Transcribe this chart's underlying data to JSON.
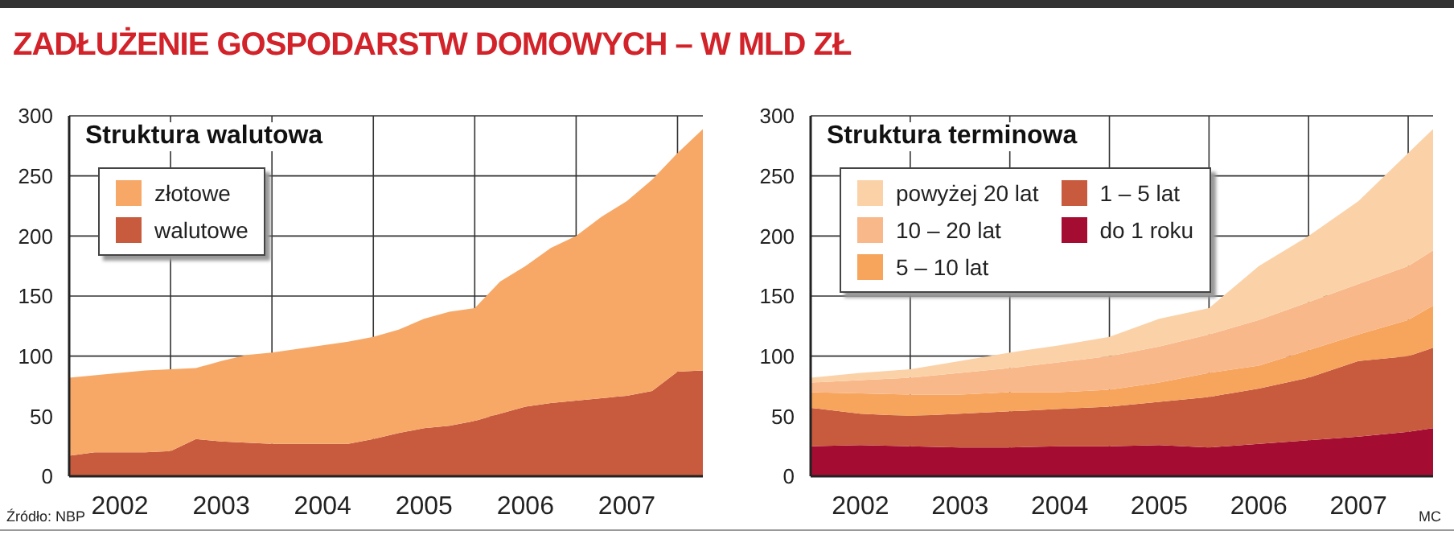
{
  "chart_data": [
    {
      "type": "area",
      "title": "ZADŁUŻENIE GOSPODARSTW DOMOWYCH – W MLD ZŁ",
      "subtitle": "Struktura walutowa",
      "stacked": true,
      "legend": "top left",
      "grid": true,
      "x": [
        2002,
        2002.25,
        2002.5,
        2002.75,
        2003,
        2003.25,
        2003.5,
        2003.75,
        2004,
        2004.25,
        2004.5,
        2004.75,
        2005,
        2005.25,
        2005.5,
        2005.75,
        2006,
        2006.25,
        2006.5,
        2006.75,
        2007,
        2007.25,
        2007.5,
        2007.75,
        2008,
        2008.25
      ],
      "series": [
        {
          "name": "walutowe",
          "color": "#c85a3e",
          "values": [
            17,
            20,
            20,
            20,
            21,
            31,
            29,
            28,
            27,
            27,
            27,
            27,
            31,
            36,
            40,
            42,
            46,
            52,
            58,
            61,
            63,
            65,
            67,
            71,
            87,
            88
          ]
        },
        {
          "name": "złotowe",
          "color": "#f7a866",
          "values": [
            65,
            64,
            66,
            68,
            68,
            59,
            67,
            73,
            76,
            79,
            82,
            85,
            85,
            86,
            91,
            95,
            94,
            110,
            117,
            129,
            137,
            151,
            162,
            176,
            182,
            201
          ]
        }
      ],
      "xlim": [
        2002,
        2008.25
      ],
      "xticks": [
        {
          "value": 2002.5,
          "label": "2002"
        },
        {
          "value": 2003,
          "label": null
        },
        {
          "value": 2003.5,
          "label": "2003"
        },
        {
          "value": 2004,
          "label": null
        },
        {
          "value": 2004.5,
          "label": "2004"
        },
        {
          "value": 2005,
          "label": null
        },
        {
          "value": 2005.5,
          "label": "2005"
        },
        {
          "value": 2006,
          "label": null
        },
        {
          "value": 2006.5,
          "label": "2006"
        },
        {
          "value": 2007,
          "label": null
        },
        {
          "value": 2007.5,
          "label": "2007"
        },
        {
          "value": 2008,
          "label": null
        }
      ],
      "ylim": [
        0,
        300
      ],
      "yticks": [
        0,
        50,
        100,
        150,
        200,
        250,
        300
      ],
      "annotations": [
        "Źródło: NBP"
      ]
    },
    {
      "type": "area",
      "subtitle": "Struktura terminowa",
      "stacked": true,
      "legend": "top left",
      "grid": true,
      "x": [
        2002,
        2002.5,
        2003,
        2003.5,
        2004,
        2004.5,
        2005,
        2005.5,
        2006,
        2006.5,
        2007,
        2007.5,
        2008,
        2008.25
      ],
      "series": [
        {
          "name": "do 1 roku",
          "color": "#a50c32",
          "values": [
            25,
            26,
            25,
            24,
            24,
            25,
            25,
            26,
            24,
            27,
            30,
            33,
            37,
            40
          ]
        },
        {
          "name": "1 – 5 lat",
          "color": "#c85a3e",
          "values": [
            32,
            26,
            25,
            28,
            30,
            31,
            33,
            36,
            42,
            46,
            52,
            63,
            63,
            67
          ]
        },
        {
          "name": "5 – 10 lat",
          "color": "#f7a45c",
          "values": [
            13,
            17,
            18,
            16,
            16,
            14,
            14,
            16,
            20,
            19,
            23,
            22,
            30,
            35
          ]
        },
        {
          "name": "10 – 20 lat",
          "color": "#f9b88a",
          "values": [
            8,
            11,
            14,
            18,
            20,
            25,
            28,
            30,
            32,
            38,
            40,
            42,
            45,
            46
          ]
        },
        {
          "name": "powyżej 20 lat",
          "color": "#fbd2a8",
          "values": [
            4,
            6,
            7,
            10,
            13,
            14,
            16,
            23,
            22,
            45,
            55,
            69,
            94,
            101
          ]
        }
      ],
      "xlim": [
        2002,
        2008.25
      ],
      "xticks": [
        {
          "value": 2002.5,
          "label": "2002"
        },
        {
          "value": 2003,
          "label": null
        },
        {
          "value": 2003.5,
          "label": "2003"
        },
        {
          "value": 2004,
          "label": null
        },
        {
          "value": 2004.5,
          "label": "2004"
        },
        {
          "value": 2005,
          "label": null
        },
        {
          "value": 2005.5,
          "label": "2005"
        },
        {
          "value": 2006,
          "label": null
        },
        {
          "value": 2006.5,
          "label": "2006"
        },
        {
          "value": 2007,
          "label": null
        },
        {
          "value": 2007.5,
          "label": "2007"
        },
        {
          "value": 2008,
          "label": null
        }
      ],
      "ylim": [
        0,
        300
      ],
      "yticks": [
        0,
        50,
        100,
        150,
        200,
        250,
        300
      ],
      "annotations": [
        "MC"
      ]
    }
  ]
}
